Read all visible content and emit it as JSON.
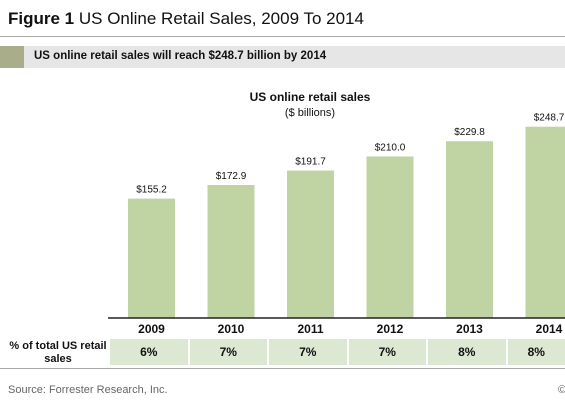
{
  "header": {
    "figure_label": "Figure 1",
    "figure_title": "US Online Retail Sales, 2009 To 2014",
    "subtitle": "US online retail sales will reach $248.7 billion by 2014"
  },
  "chart_data": {
    "type": "bar",
    "title": "US online retail sales",
    "subtitle": "($ billions)",
    "categories": [
      "2009",
      "2010",
      "2011",
      "2012",
      "2013",
      "2014"
    ],
    "values": [
      155.2,
      172.9,
      191.7,
      210.0,
      229.8,
      248.7
    ],
    "data_labels": [
      "$155.2",
      "$172.9",
      "$191.7",
      "$210.0",
      "$229.8",
      "$248.7"
    ],
    "xlabel": "",
    "ylabel": "",
    "ylim": [
      0,
      260
    ],
    "grid": false,
    "bar_color": "#c0d4a3"
  },
  "table": {
    "row_label": "% of total US retail sales",
    "values": [
      "6%",
      "7%",
      "7%",
      "7%",
      "8%",
      "8%"
    ]
  },
  "footer": {
    "source": "Source: Forrester Research, Inc.",
    "copyright": "©"
  }
}
